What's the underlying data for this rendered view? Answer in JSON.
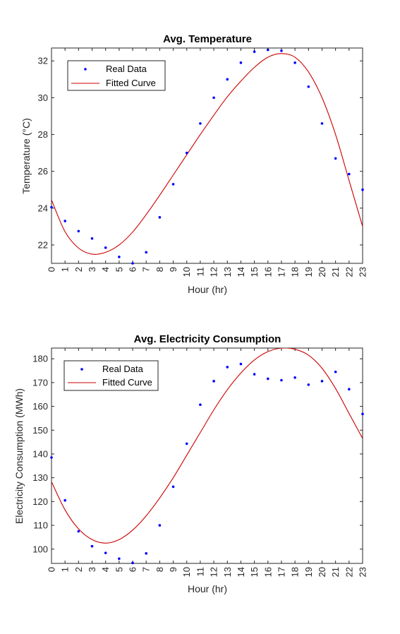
{
  "chart_data": [
    {
      "type": "scatter",
      "title": "Avg. Temperature",
      "xlabel": "Hour (hr)",
      "ylabel": "Temperature (°C)",
      "xlim": [
        0,
        23
      ],
      "ylim": [
        21,
        32.7
      ],
      "xticks": [
        0,
        1,
        2,
        3,
        4,
        5,
        6,
        7,
        8,
        9,
        10,
        11,
        12,
        13,
        14,
        15,
        16,
        17,
        18,
        19,
        20,
        21,
        22,
        23
      ],
      "yticks": [
        22,
        24,
        26,
        28,
        30,
        32
      ],
      "grid": false,
      "legend_position": "top-left",
      "series": [
        {
          "name": "Real Data",
          "kind": "points",
          "color": "#0000ff",
          "x": [
            0,
            1,
            2,
            3,
            4,
            5,
            6,
            7,
            8,
            9,
            10,
            11,
            12,
            13,
            14,
            15,
            16,
            17,
            18,
            19,
            20,
            21,
            22,
            23
          ],
          "y": [
            24.05,
            23.3,
            22.75,
            22.35,
            21.85,
            21.35,
            21.0,
            21.6,
            23.5,
            25.3,
            27.0,
            28.6,
            30.0,
            31.0,
            31.9,
            32.5,
            32.6,
            32.55,
            31.9,
            30.6,
            28.6,
            26.7,
            25.85,
            25.0
          ]
        },
        {
          "name": "Fitted Curve",
          "kind": "line",
          "color": "#cc0000",
          "x": [
            0,
            1,
            2,
            3,
            4,
            5,
            6,
            7,
            8,
            9,
            10,
            11,
            12,
            13,
            14,
            15,
            16,
            17,
            18,
            19,
            20,
            21,
            22,
            23
          ],
          "y": [
            24.45,
            22.72,
            21.83,
            21.5,
            21.6,
            22.0,
            22.7,
            23.65,
            24.7,
            25.8,
            26.9,
            28.0,
            29.05,
            30.05,
            30.9,
            31.65,
            32.2,
            32.4,
            32.2,
            31.4,
            30.0,
            28.0,
            25.5,
            23.0
          ]
        }
      ]
    },
    {
      "type": "scatter",
      "title": "Avg. Electricity Consumption",
      "xlabel": "Hour (hr)",
      "ylabel": "Electricity Consumption (MWh)",
      "xlim": [
        0,
        23
      ],
      "ylim": [
        94,
        184.5
      ],
      "xticks": [
        0,
        1,
        2,
        3,
        4,
        5,
        6,
        7,
        8,
        9,
        10,
        11,
        12,
        13,
        14,
        15,
        16,
        17,
        18,
        19,
        20,
        21,
        22,
        23
      ],
      "yticks": [
        100,
        110,
        120,
        130,
        140,
        150,
        160,
        170,
        180
      ],
      "grid": false,
      "legend_position": "top-left",
      "series": [
        {
          "name": "Real Data",
          "kind": "points",
          "color": "#0000ff",
          "x": [
            0,
            1,
            2,
            3,
            4,
            5,
            6,
            7,
            8,
            9,
            10,
            11,
            12,
            13,
            14,
            15,
            16,
            17,
            18,
            19,
            20,
            21,
            22,
            23
          ],
          "y": [
            138.5,
            120.5,
            107.5,
            101.2,
            98.4,
            96.0,
            94.2,
            98.2,
            110.0,
            126.2,
            144.3,
            160.7,
            170.6,
            176.5,
            177.8,
            173.5,
            171.6,
            171.0,
            172.1,
            169.1,
            170.6,
            174.5,
            167.2,
            156.8
          ]
        },
        {
          "name": "Fitted Curve",
          "kind": "line",
          "color": "#cc0000",
          "x": [
            0,
            1,
            2,
            3,
            4,
            5,
            6,
            7,
            8,
            9,
            10,
            11,
            12,
            13,
            14,
            15,
            16,
            17,
            18,
            19,
            20,
            21,
            22,
            23
          ],
          "y": [
            128.3,
            116.5,
            108.5,
            104.0,
            102.5,
            104.0,
            108.0,
            114.0,
            121.5,
            130.0,
            139.5,
            149.0,
            158.5,
            167.0,
            174.0,
            179.5,
            183.0,
            184.5,
            184.0,
            181.5,
            176.0,
            167.5,
            157.0,
            146.5
          ]
        }
      ]
    }
  ]
}
